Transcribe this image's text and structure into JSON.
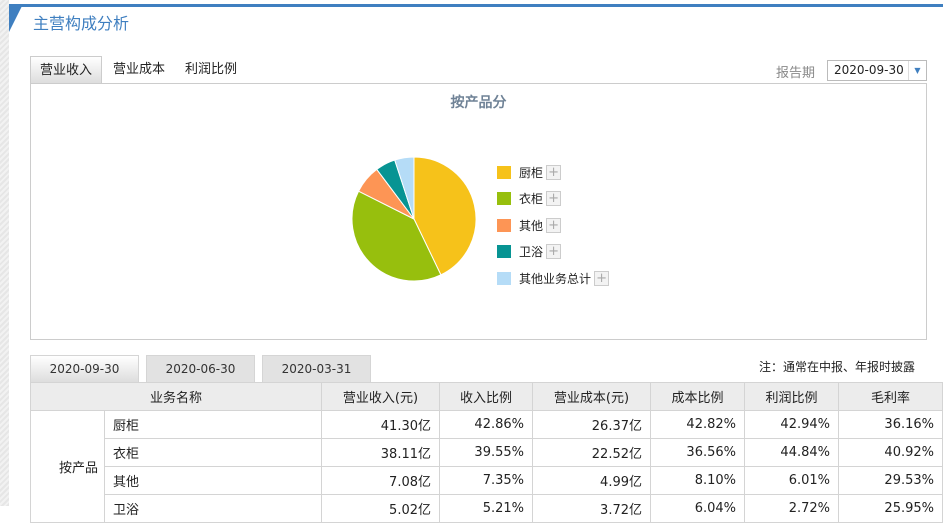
{
  "header": {
    "title": "主营构成分析"
  },
  "tabs": [
    {
      "label": "营业收入",
      "active": true
    },
    {
      "label": "营业成本"
    },
    {
      "label": "利润比例"
    }
  ],
  "period": {
    "label": "报告期",
    "value": "2020-09-30"
  },
  "colors": {
    "accent": "#3f7fc0"
  },
  "chart_data": {
    "type": "pie",
    "title": "按产品分",
    "categories": [
      "厨柜",
      "衣柜",
      "其他",
      "卫浴",
      "其他业务总计"
    ],
    "values": [
      42.86,
      39.55,
      7.35,
      5.21,
      5.03
    ],
    "colors": [
      "#f6c21a",
      "#97bf0d",
      "#fd9555",
      "#079493",
      "#b5dcf7"
    ],
    "legend": "right"
  },
  "date_tabs": [
    "2020-09-30",
    "2020-06-30",
    "2020-03-31"
  ],
  "note": "注：通常在中报、年报时披露",
  "table": {
    "headers": [
      "业务名称",
      "营业收入(元)",
      "收入比例",
      "营业成本(元)",
      "成本比例",
      "利润比例",
      "毛利率"
    ],
    "group": "按产品",
    "rows": [
      [
        "厨柜",
        "41.30亿",
        "42.86%",
        "26.37亿",
        "42.82%",
        "42.94%",
        "36.16%"
      ],
      [
        "衣柜",
        "38.11亿",
        "39.55%",
        "22.52亿",
        "36.56%",
        "44.84%",
        "40.92%"
      ],
      [
        "其他",
        "7.08亿",
        "7.35%",
        "4.99亿",
        "8.10%",
        "6.01%",
        "29.53%"
      ],
      [
        "卫浴",
        "5.02亿",
        "5.21%",
        "3.72亿",
        "6.04%",
        "2.72%",
        "25.95%"
      ]
    ]
  }
}
